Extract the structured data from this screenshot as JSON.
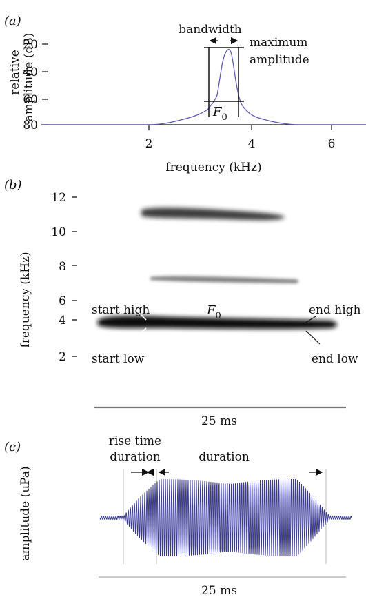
{
  "colors": {
    "ink": "#111111",
    "spectrum": "#5b5bb4",
    "waveform": "#3b3b98",
    "rule": "#888888"
  },
  "panel_a": {
    "label": "(a)",
    "y_axis_label_line1": "relative",
    "y_axis_label_line2": "amplitude (dB)",
    "x_axis_label": "frequency (kHz)",
    "y_ticks": [
      "20",
      "40",
      "60",
      "80"
    ],
    "x_ticks": [
      "2",
      "4",
      "6"
    ],
    "bandwidth_label": "bandwidth",
    "max_amp_line1": "maximum",
    "max_amp_line2": "amplitude",
    "f0_label": "F",
    "f0_sub": "0"
  },
  "panel_b": {
    "label": "(b)",
    "y_axis_label": "frequency (kHz)",
    "y_ticks": [
      "12",
      "10",
      "8",
      "6",
      "4",
      "2"
    ],
    "start_high": "start high",
    "start_low": "start low",
    "end_high": "end high",
    "end_low": "end low",
    "f0_label": "F",
    "f0_sub": "0",
    "scale_label": "25 ms"
  },
  "panel_c": {
    "label": "(c)",
    "y_axis_label": "amplitude (uPa)",
    "rise_line1": "rise time",
    "rise_line2": "duration",
    "duration_label": "duration",
    "scale_label": "25 ms"
  }
}
